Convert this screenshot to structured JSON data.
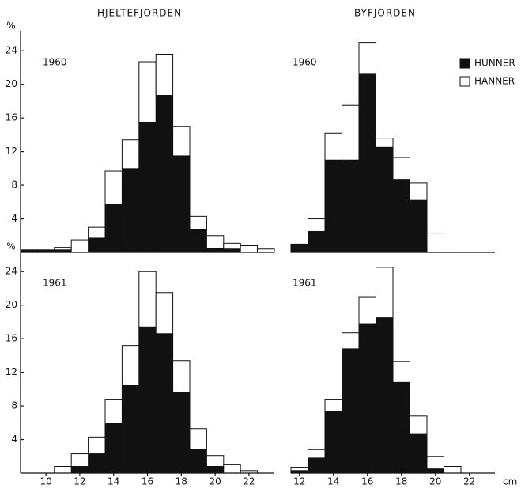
{
  "chart_data": [
    {
      "type": "histogram",
      "title": "HJELTEFJORDEN",
      "annotation": "1960",
      "ylabel": "%",
      "bins": [
        8.5,
        9.5,
        10.5,
        11.5,
        12.5,
        13.5,
        14.5,
        15.5,
        16.5,
        17.5,
        18.5,
        19.5,
        20.5,
        21.5,
        22.5,
        23.5
      ],
      "series": [
        {
          "color": "#111111",
          "values": [
            0.3,
            0.3,
            0.3,
            0,
            1.7,
            5.7,
            10,
            15.5,
            18.7,
            11.5,
            2.7,
            0.5,
            0.4,
            0,
            0
          ]
        },
        {
          "color": "#ffffff",
          "values": [
            0,
            0,
            0.3,
            1.5,
            1.3,
            4.0,
            3.4,
            7.2,
            4.9,
            3.5,
            1.6,
            1.5,
            0.7,
            0.8,
            0.4
          ]
        }
      ],
      "xlim": [
        8.5,
        23.5
      ],
      "ylim": [
        0,
        26
      ],
      "yticks": [
        4,
        8,
        12,
        16,
        20,
        24
      ]
    },
    {
      "type": "histogram",
      "title": "BYFJORDEN",
      "annotation": "1960",
      "legend": "upper right",
      "bins": [
        11.5,
        12.5,
        13.5,
        14.5,
        15.5,
        16.5,
        17.5,
        18.5,
        19.5,
        20.5
      ],
      "series": [
        {
          "name": "HUNNER",
          "color": "#111111",
          "values": [
            1,
            2.5,
            11,
            11,
            21.3,
            12.5,
            8.7,
            6.2,
            0
          ]
        },
        {
          "name": "HANNER",
          "color": "#ffffff",
          "values": [
            0,
            1.5,
            3.2,
            6.5,
            3.7,
            1.1,
            2.6,
            2.1,
            2.3
          ]
        }
      ],
      "xlim": [
        11.5,
        23.5
      ],
      "ylim": [
        0,
        26
      ]
    },
    {
      "type": "histogram",
      "annotation": "1961",
      "ylabel": "%",
      "bins": [
        10.5,
        11.5,
        12.5,
        13.5,
        14.5,
        15.5,
        16.5,
        17.5,
        18.5,
        19.5,
        20.5,
        21.5,
        22.5
      ],
      "series": [
        {
          "color": "#111111",
          "values": [
            0,
            0.8,
            2.3,
            5.9,
            10.5,
            17.4,
            16.6,
            9.6,
            2.8,
            0.8,
            0,
            0
          ]
        },
        {
          "color": "#ffffff",
          "values": [
            0.8,
            1.5,
            2.0,
            2.9,
            4.7,
            6.6,
            4.9,
            3.8,
            2.5,
            1.3,
            1,
            0.3
          ]
        }
      ],
      "xlim": [
        8.5,
        23.5
      ],
      "ylim": [
        0,
        26
      ],
      "yticks": [
        4,
        8,
        12,
        16,
        20,
        24
      ],
      "xticks": [
        10,
        12,
        14,
        16,
        18,
        20,
        22
      ]
    },
    {
      "type": "histogram",
      "annotation": "1961",
      "xlabel": "cm",
      "bins": [
        11.5,
        12.5,
        13.5,
        14.5,
        15.5,
        16.5,
        17.5,
        18.5,
        19.5,
        20.5,
        21.5
      ],
      "series": [
        {
          "color": "#111111",
          "values": [
            0.3,
            1.8,
            7.3,
            14.8,
            17.8,
            18.5,
            10.8,
            4.7,
            0.5,
            0
          ]
        },
        {
          "color": "#ffffff",
          "values": [
            0.4,
            1.0,
            1.5,
            1.9,
            3.2,
            6,
            2.5,
            2.1,
            1.5,
            0.8
          ]
        }
      ],
      "xlim": [
        11.5,
        23.5
      ],
      "ylim": [
        0,
        26
      ],
      "xticks": [
        12,
        14,
        16,
        18,
        20,
        22
      ]
    }
  ]
}
